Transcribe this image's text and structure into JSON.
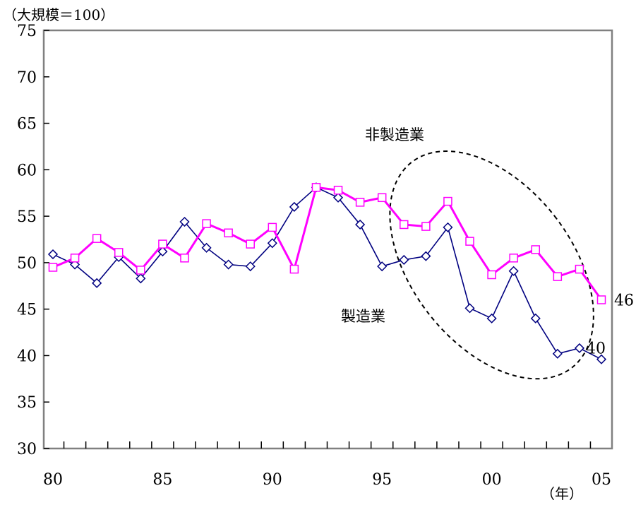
{
  "chart_data": {
    "type": "line",
    "ylabel": "（大規模＝100）",
    "xlabel": "（年）",
    "ylim": [
      30,
      75
    ],
    "yticks": [
      30,
      35,
      40,
      45,
      50,
      55,
      60,
      65,
      70,
      75
    ],
    "x": [
      1980,
      1981,
      1982,
      1983,
      1984,
      1985,
      1986,
      1987,
      1988,
      1989,
      1990,
      1991,
      1992,
      1993,
      1994,
      1995,
      1996,
      1997,
      1998,
      1999,
      2000,
      2001,
      2002,
      2003,
      2004,
      2005
    ],
    "xtick_labels": [
      {
        "x": 1980,
        "label": "80"
      },
      {
        "x": 1985,
        "label": "85"
      },
      {
        "x": 1990,
        "label": "90"
      },
      {
        "x": 1995,
        "label": "95"
      },
      {
        "x": 2000,
        "label": "00"
      },
      {
        "x": 2005,
        "label": "05"
      }
    ],
    "series": [
      {
        "name": "非製造業",
        "color": "#ff00ff",
        "marker": "square",
        "values": [
          49.5,
          50.5,
          52.6,
          51.1,
          49.2,
          52.0,
          50.5,
          54.2,
          53.2,
          52.0,
          53.8,
          49.3,
          58.1,
          57.8,
          56.5,
          57.0,
          54.1,
          53.9,
          56.6,
          52.3,
          48.7,
          50.5,
          51.4,
          48.5,
          49.3,
          46.0
        ],
        "end_label": "46"
      },
      {
        "name": "製造業",
        "color": "#000080",
        "marker": "diamond",
        "values": [
          50.9,
          49.8,
          47.8,
          50.6,
          48.3,
          51.2,
          54.4,
          51.6,
          49.8,
          49.6,
          52.1,
          56.0,
          58.1,
          57.0,
          54.1,
          49.6,
          50.3,
          50.7,
          53.8,
          45.1,
          44.0,
          49.1,
          44.0,
          40.2,
          40.8,
          39.6
        ],
        "end_label": "40"
      }
    ],
    "annotations": {
      "ellipse_x_range": [
        1994.5,
        2005.5
      ],
      "ellipse_y_range": [
        36,
        63.5
      ]
    },
    "grid": false,
    "legend": "none"
  }
}
